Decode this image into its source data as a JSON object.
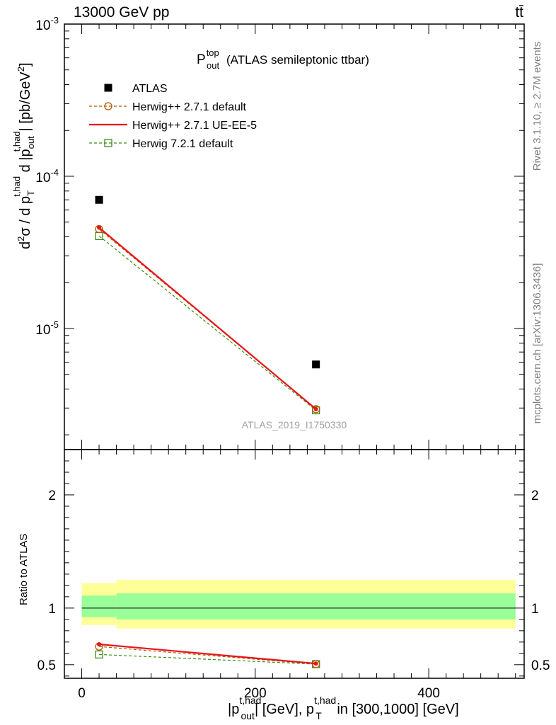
{
  "header": {
    "energy_label": "13000 GeV pp",
    "process_label": "tt̄"
  },
  "side_labels": {
    "rivet": "Rivet 3.1.10, ≥ 2.7M events",
    "mcplots": "mcplots.cern.ch [arXiv:1306.3436]"
  },
  "chart_data": [
    {
      "type": "line",
      "title_main": "P",
      "title_sup": "top",
      "title_sub": "out",
      "title_rest": "(ATLAS semileptonic ttbar)",
      "ylabel": "d²σ / d p_T^{t,had} d |p_out^{t,had}| [pb/GeV²]",
      "watermark": "ATLAS_2019_I1750330",
      "yscale": "log",
      "ylim": [
        1.6e-06,
        0.001
      ],
      "xlim": [
        -20,
        510
      ],
      "yticks": [
        {
          "value": 1e-05,
          "base": "10",
          "exp": "-5"
        },
        {
          "value": 0.0001,
          "base": "10",
          "exp": "-4"
        },
        {
          "value": 0.001,
          "base": "10",
          "exp": "-3"
        }
      ],
      "legend_position": "top-left",
      "series": [
        {
          "name": "ATLAS",
          "style": "data",
          "color": "#000000",
          "x": [
            20,
            270
          ],
          "values": [
            7e-05,
            5.8e-06
          ]
        },
        {
          "name": "Herwig++ 2.7.1 default",
          "style": "circle-dashed",
          "color": "#b35900",
          "x": [
            20,
            270
          ],
          "values": [
            4.5e-05,
            2.95e-06
          ]
        },
        {
          "name": "Herwig++ 2.7.1 UE-EE-5",
          "style": "solid",
          "color": "#e8141a",
          "x": [
            20,
            270
          ],
          "values": [
            4.6e-05,
            2.95e-06
          ]
        },
        {
          "name": "Herwig 7.2.1 default",
          "style": "square-dashed",
          "color": "#3c8c14",
          "x": [
            20,
            270
          ],
          "values": [
            4.05e-05,
            2.9e-06
          ]
        }
      ]
    },
    {
      "type": "line",
      "ylabel": "Ratio to ATLAS",
      "xlabel_parts": [
        "|p",
        "t,had",
        "out",
        "| [GeV], p",
        "t,had",
        "T",
        " in [300,1000] [GeV]"
      ],
      "ylim": [
        0.38,
        2.4
      ],
      "xlim": [
        -20,
        510
      ],
      "xticks": [
        0,
        200,
        400
      ],
      "yticks": [
        0.5,
        1,
        2
      ],
      "bands": [
        {
          "name": "outer",
          "color": "#ffff99",
          "segments": [
            {
              "x0": 0,
              "x1": 40,
              "lo": 0.85,
              "hi": 1.22
            },
            {
              "x0": 40,
              "x1": 500,
              "lo": 0.82,
              "hi": 1.25
            }
          ]
        },
        {
          "name": "inner",
          "color": "#99ff99",
          "segments": [
            {
              "x0": 0,
              "x1": 40,
              "lo": 0.92,
              "hi": 1.11
            },
            {
              "x0": 40,
              "x1": 500,
              "lo": 0.9,
              "hi": 1.13
            }
          ]
        }
      ],
      "series": [
        {
          "name": "Herwig++ 2.7.1 default",
          "style": "circle-dashed",
          "color": "#b35900",
          "x": [
            20,
            270
          ],
          "values": [
            0.66,
            0.505
          ]
        },
        {
          "name": "Herwig++ 2.7.1 UE-EE-5",
          "style": "solid",
          "color": "#e8141a",
          "x": [
            20,
            270
          ],
          "values": [
            0.68,
            0.51
          ]
        },
        {
          "name": "Herwig 7.2.1 default",
          "style": "square-dashed",
          "color": "#3c8c14",
          "x": [
            20,
            270
          ],
          "values": [
            0.59,
            0.505
          ]
        }
      ]
    }
  ]
}
